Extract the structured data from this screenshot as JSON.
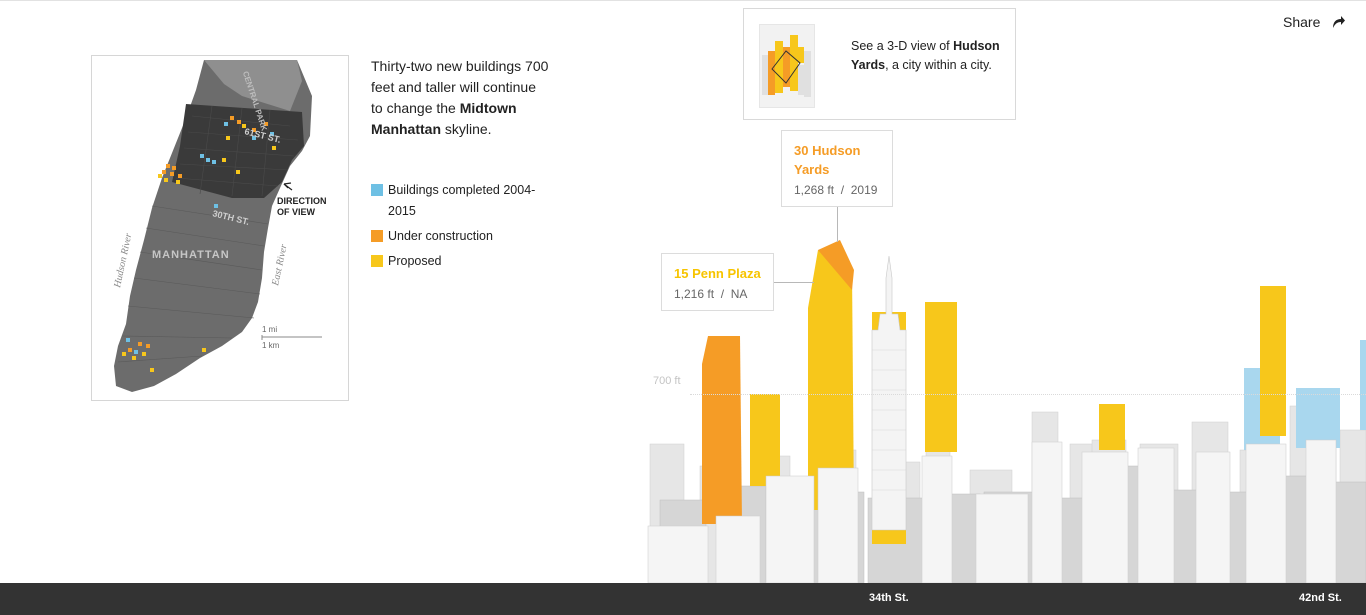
{
  "intro": {
    "text_before": "Thirty-two new buildings 700 feet and taller will continue to change the",
    "highlight": "Midtown Manhattan",
    "text_after": "skyline."
  },
  "legend": [
    {
      "label": "Buildings completed 2004-2015",
      "color": "#6ec0e4"
    },
    {
      "label": "Under construction",
      "color": "#f59c26"
    },
    {
      "label": "Proposed",
      "color": "#f7c71b"
    }
  ],
  "map": {
    "labels": {
      "central_park": "CENTRAL PARK",
      "street_61": "61ST ST.",
      "street_30": "30TH ST.",
      "direction": [
        "DIRECTION",
        "OF VIEW"
      ],
      "manhattan": "MANHATTAN",
      "hudson_river": "Hudson River",
      "east_river": "East River",
      "scale_mi": "1 mi",
      "scale_km": "1 km"
    }
  },
  "share": {
    "label": "Share",
    "icon": "share-arrow-icon"
  },
  "promo": {
    "text_before": "See a 3-D view of",
    "highlight": "Hudson Yards",
    "text_after": ", a city within a city."
  },
  "callouts": {
    "hudson": {
      "name": "30 Hudson Yards",
      "height": "1,268 ft",
      "sep": "/",
      "year": "2019"
    },
    "penn": {
      "name": "15 Penn Plaza",
      "height": "1,216 ft",
      "sep": "/",
      "year": "NA"
    }
  },
  "skyline": {
    "reference_label": "700 ft"
  },
  "streets": {
    "s34": "34th St.",
    "s42": "42nd St."
  },
  "colors": {
    "completed": "#6ec0e4",
    "under_construction": "#f59c26",
    "proposed": "#f7c71b",
    "street_bar": "#333333"
  }
}
